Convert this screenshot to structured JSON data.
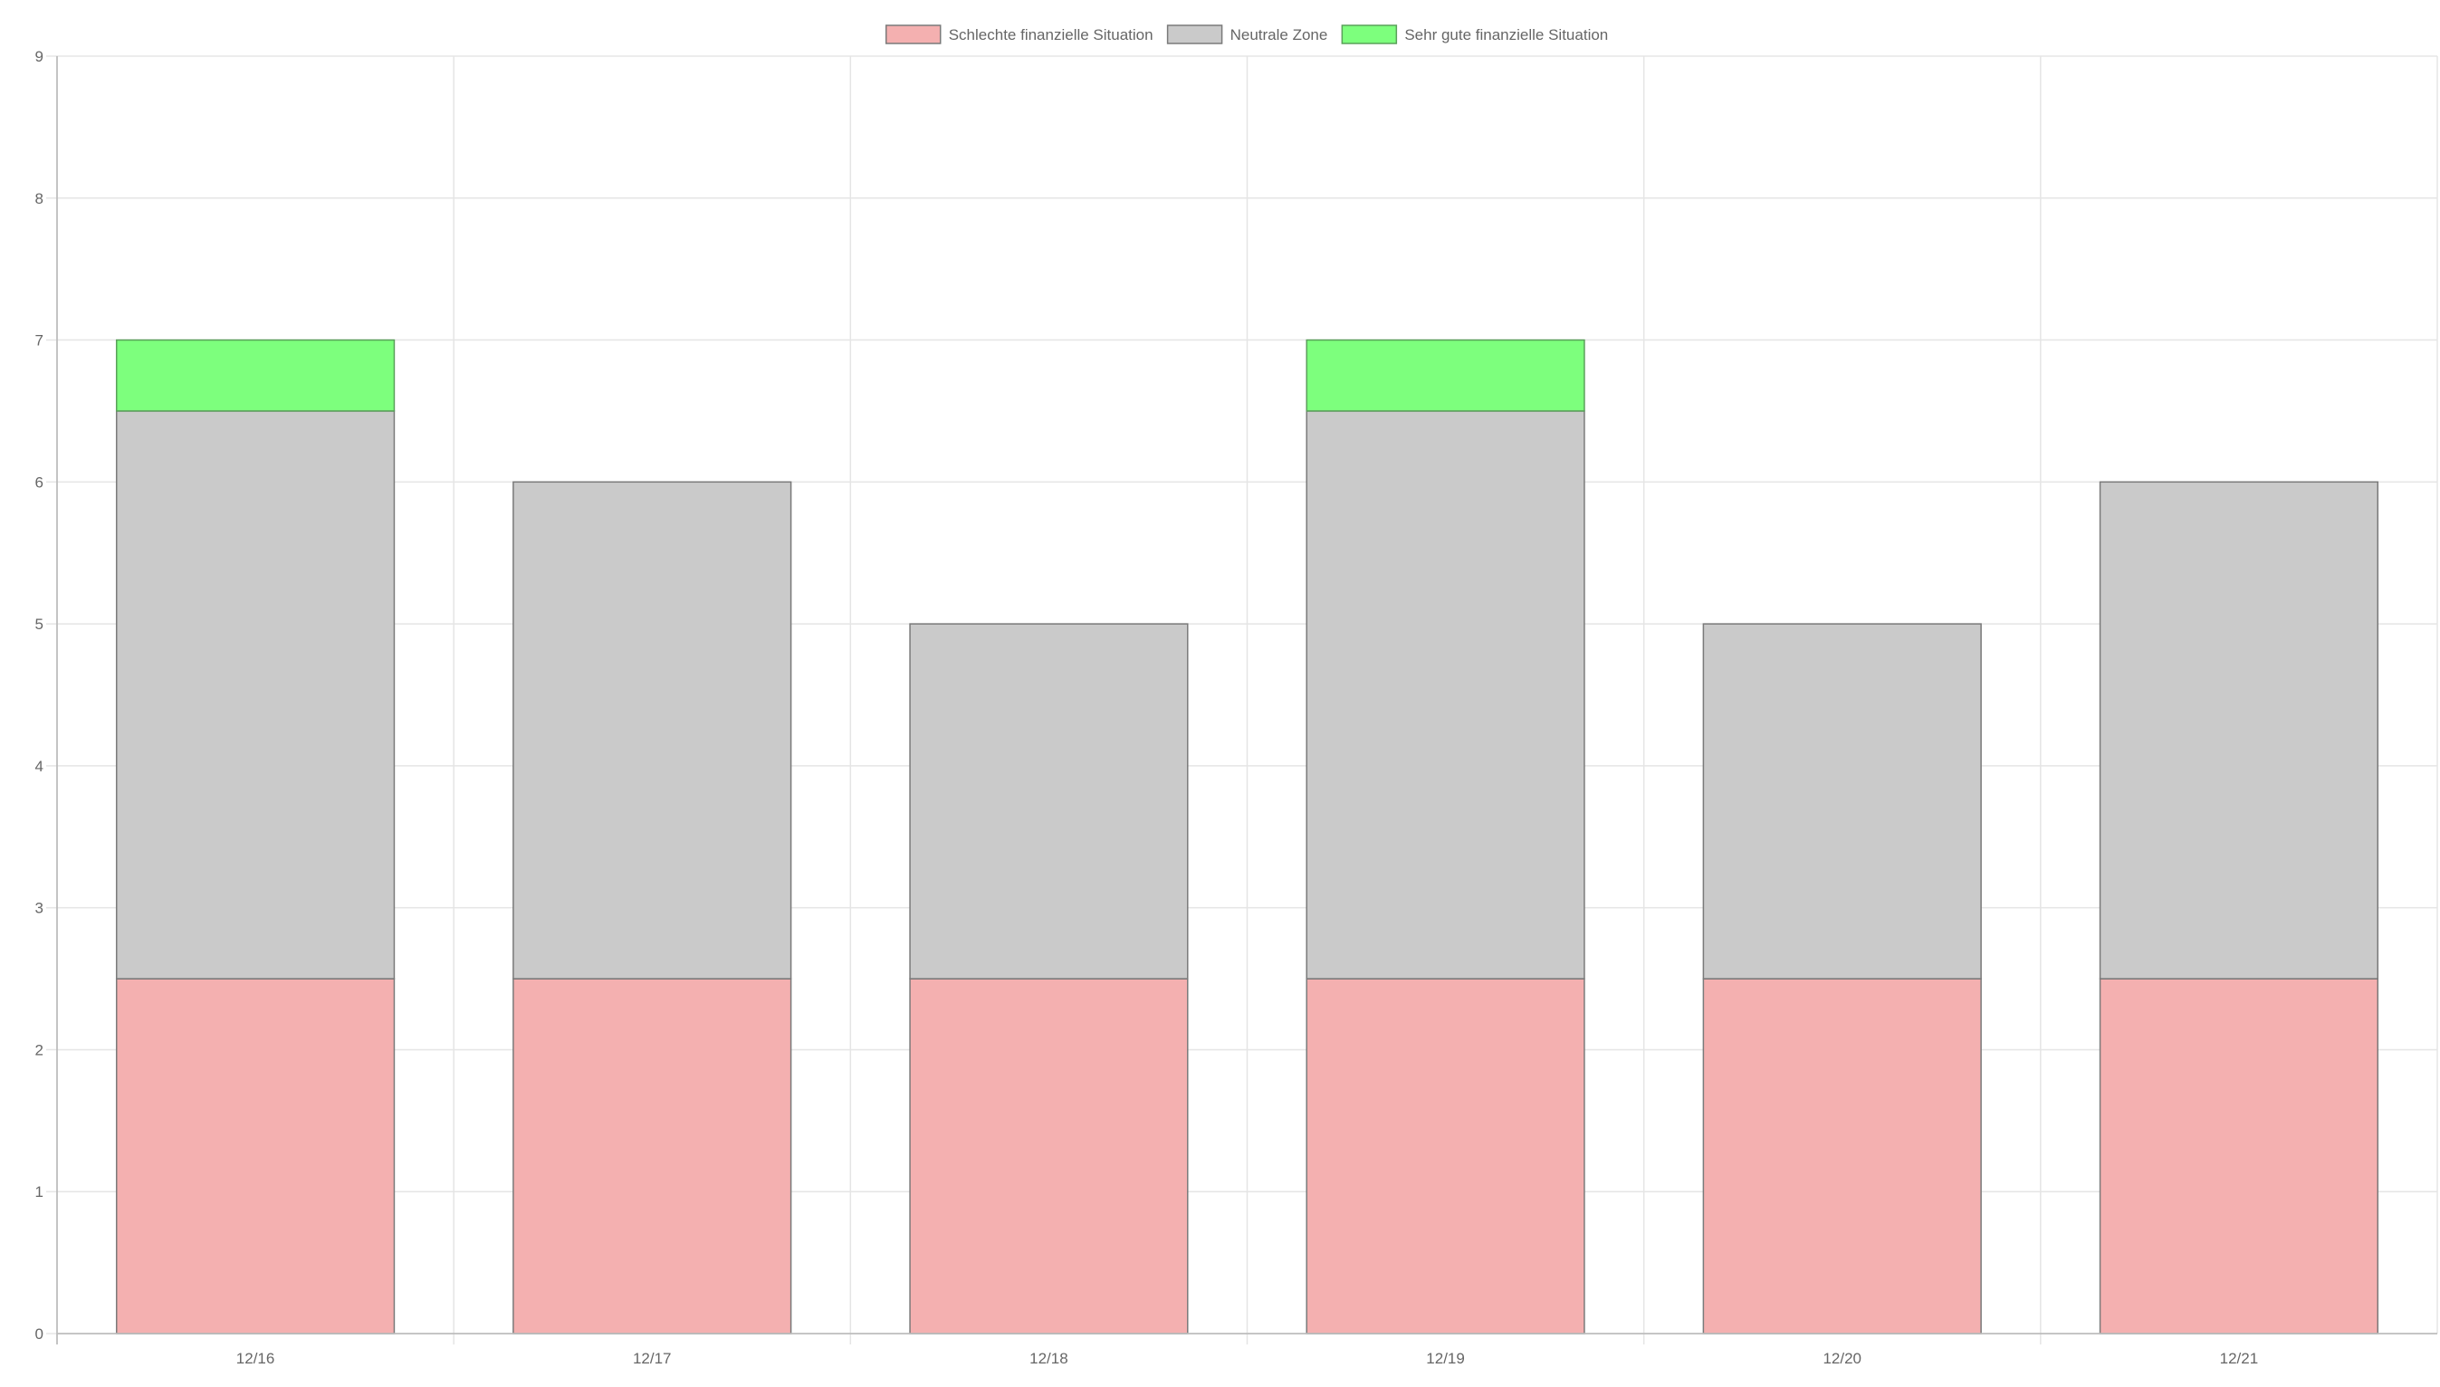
{
  "chart_data": {
    "type": "bar",
    "stacked": true,
    "categories": [
      "12/16",
      "12/17",
      "12/18",
      "12/19",
      "12/20",
      "12/21"
    ],
    "series": [
      {
        "name": "Schlechte finanzielle Situation",
        "values": [
          2.5,
          2.5,
          2.5,
          2.5,
          2.5,
          2.5
        ],
        "color": "#f4b0b0",
        "border": "#7a7a7a"
      },
      {
        "name": "Neutrale Zone",
        "values": [
          4,
          3.5,
          2.5,
          4,
          2.5,
          3.5
        ],
        "color": "#cacaca",
        "border": "#7a7a7a"
      },
      {
        "name": "Sehr gute finanzielle Situation",
        "values": [
          0.5,
          0,
          0,
          0.5,
          0,
          0
        ],
        "color": "#7dff7d",
        "border": "#5aa05a"
      }
    ],
    "ylim": [
      0,
      9
    ],
    "yticks": [
      "0",
      "1",
      "2",
      "3",
      "4",
      "5",
      "6",
      "7",
      "8",
      "9"
    ],
    "grid": true,
    "legend": "top-center",
    "title": "",
    "xlabel": "",
    "ylabel": ""
  }
}
